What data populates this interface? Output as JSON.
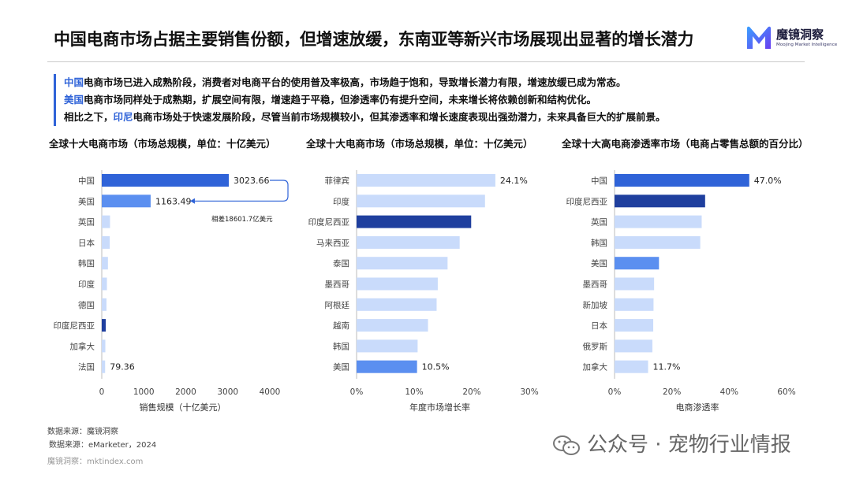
{
  "header": {
    "title": "中国电商市场占据主要销售份额，但增速放缓，东南亚等新兴市场展现出显著的增长潜力",
    "logo_name": "魔镜洞察",
    "logo_sub": "Moojing Market Intelligence"
  },
  "summary": [
    {
      "highlight": "中国",
      "text": "电商市场已进入成熟阶段，消费者对电商平台的使用普及率极高，市场趋于饱和，导致增长潜力有限，增速放缓已成为常态。"
    },
    {
      "highlight": "美国",
      "text": "电商市场同样处于成熟期，扩展空间有限，增速趋于平稳，但渗透率仍有提升空间，未来增长将依赖创新和结构优化。"
    },
    {
      "prefix": "相比之下，",
      "highlight": "印尼",
      "text": "电商市场处于快速发展阶段，尽管当前市场规模较小，但其渗透率和增长速度表现出强劲潜力，未来具备巨大的扩展前景。"
    }
  ],
  "colors": {
    "light": "#c9dbfb",
    "mid": "#5b8ff0",
    "strong": "#2f63d8",
    "dark": "#1f3f9e"
  },
  "chart_data": [
    {
      "type": "bar",
      "orientation": "horizontal",
      "title": "全球十大电商市场（市场总规模，单位：十亿美元）",
      "xlabel": "销售规模（十亿美元）",
      "categories": [
        "中国",
        "美国",
        "英国",
        "日本",
        "韩国",
        "印度",
        "德国",
        "印度尼西亚",
        "加拿大",
        "法国"
      ],
      "values": [
        3023.66,
        1163.49,
        196,
        190,
        147,
        123,
        112,
        95,
        85,
        79.36
      ],
      "value_labels": [
        "3023.66",
        "1163.49",
        "",
        "",
        "",
        "",
        "",
        "",
        "",
        "79.36"
      ],
      "bar_colors": [
        "strong",
        "mid",
        "light",
        "light",
        "light",
        "light",
        "light",
        "dark",
        "light",
        "light"
      ],
      "xticks": [
        "0",
        "1000",
        "2000",
        "3000",
        "4000"
      ],
      "xlim": [
        0,
        4000
      ],
      "annotation": "相差18601.7亿美元"
    },
    {
      "type": "bar",
      "orientation": "horizontal",
      "title": "全球十大电商市场（市场总规模，单位：十亿美元）",
      "xlabel": "年度市场增长率",
      "categories": [
        "菲律宾",
        "印度",
        "印度尼西亚",
        "马来西亚",
        "泰国",
        "墨西哥",
        "阿根廷",
        "越南",
        "韩国",
        "美国"
      ],
      "values": [
        24.1,
        22.3,
        19.9,
        17.9,
        15.8,
        14.1,
        13.9,
        12.4,
        10.6,
        10.5
      ],
      "value_labels": [
        "24.1%",
        "",
        "",
        "",
        "",
        "",
        "",
        "",
        "",
        "10.5%"
      ],
      "bar_colors": [
        "light",
        "light",
        "dark",
        "light",
        "light",
        "light",
        "light",
        "light",
        "light",
        "mid"
      ],
      "xticks": [
        "0%",
        "10%",
        "20%",
        "30%"
      ],
      "xlim": [
        0,
        30
      ]
    },
    {
      "type": "bar",
      "orientation": "horizontal",
      "title": "全球十大高电商渗透率市场（电商占零售总额的百分比）",
      "xlabel": "电商渗透率",
      "categories": [
        "中国",
        "印度尼西亚",
        "英国",
        "韩国",
        "美国",
        "墨西哥",
        "新加坡",
        "日本",
        "俄罗斯",
        "加拿大"
      ],
      "values": [
        47.0,
        31.6,
        30.4,
        29.9,
        15.5,
        13.8,
        13.6,
        13.5,
        13.2,
        11.7
      ],
      "value_labels": [
        "47.0%",
        "",
        "",
        "",
        "",
        "",
        "",
        "",
        "",
        "11.7%"
      ],
      "bar_colors": [
        "strong",
        "dark",
        "light",
        "light",
        "mid",
        "light",
        "light",
        "light",
        "light",
        "light"
      ],
      "xticks": [
        "0%",
        "20%",
        "40%",
        "60%"
      ],
      "xlim": [
        0,
        60
      ]
    }
  ],
  "sources": {
    "line1": "数据来源：魔镜洞察",
    "line2": "数据来源：eMarketer，2024",
    "line3": "魔镜洞察：mktindex.com"
  },
  "watermark": "公众号 · 宠物行业情报"
}
